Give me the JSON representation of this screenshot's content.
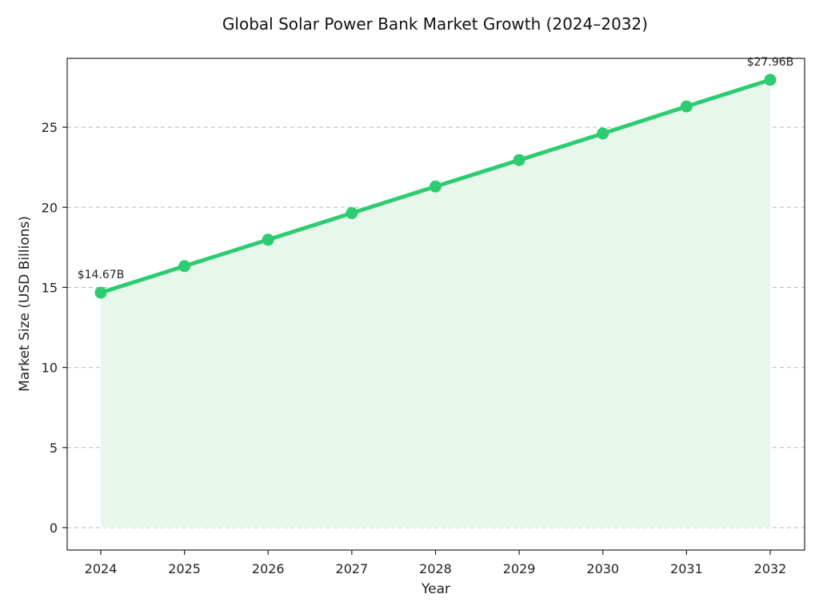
{
  "chart_data": {
    "type": "area",
    "title": "Global Solar Power Bank Market Growth (2024–2032)",
    "xlabel": "Year",
    "ylabel": "Market Size (USD Billions)",
    "categories": [
      "2024",
      "2025",
      "2026",
      "2027",
      "2028",
      "2029",
      "2030",
      "2031",
      "2032"
    ],
    "series": [
      {
        "values": [
          14.67,
          16.33,
          17.98,
          19.64,
          21.3,
          22.95,
          24.61,
          26.3,
          27.96
        ]
      }
    ],
    "ylim": [
      -1.4,
      29.3
    ],
    "yticks": [
      0,
      5,
      10,
      15,
      20,
      25
    ],
    "annotations": [
      {
        "category": "2024",
        "text": "$14.67B"
      },
      {
        "category": "2032",
        "text": "$27.96B"
      }
    ],
    "grid": "y-dashed",
    "colors": {
      "line": "#2ecc71",
      "fill": "#e8f7ec",
      "grid": "#bbbbbb",
      "axis": "#222222"
    }
  }
}
